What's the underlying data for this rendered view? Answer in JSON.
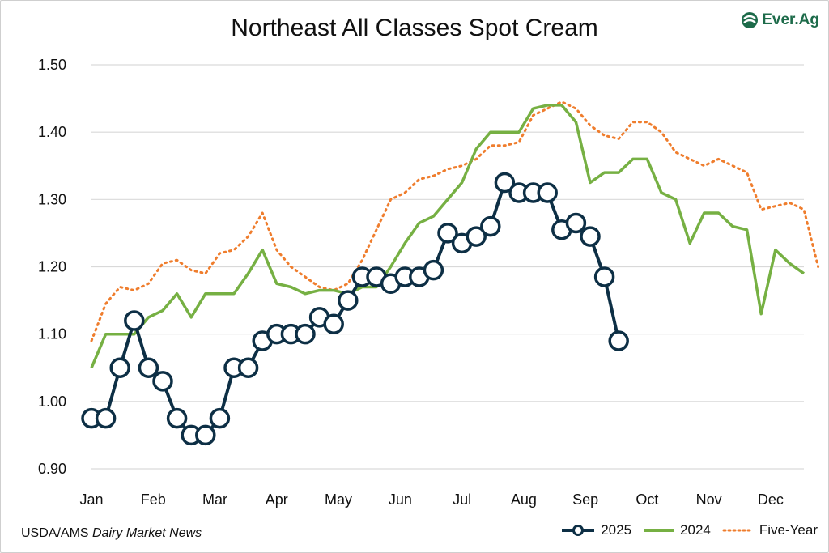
{
  "logo": {
    "name": "Ever.Ag",
    "icon": "ever-ag-logo-icon"
  },
  "source": {
    "prefix": "USDA/AMS",
    "publication": "Dairy Market News"
  },
  "colors": {
    "s2025": "#0d2f45",
    "s2024": "#76b043",
    "five": "#ef7d2d",
    "grid": "#d9d9d9"
  },
  "chart_data": {
    "type": "line",
    "title": "Northeast All Classes Spot Cream",
    "ylim": [
      0.9,
      1.5
    ],
    "yticks": [
      "0.90",
      "1.00",
      "1.10",
      "1.20",
      "1.30",
      "1.40",
      "1.50"
    ],
    "xlim": [
      0,
      50
    ],
    "months": [
      "Jan",
      "Feb",
      "Mar",
      "Apr",
      "May",
      "Jun",
      "Jul",
      "Aug",
      "Sep",
      "Oct",
      "Nov",
      "Dec"
    ],
    "grid": true,
    "legend_position": "bottom-right",
    "series": [
      {
        "name": "2025",
        "style": "line-markers",
        "x": [
          0,
          1,
          2,
          3,
          4,
          5,
          6,
          7,
          8,
          9,
          10,
          11,
          12,
          13,
          14,
          15,
          16,
          17,
          18,
          19,
          20,
          21,
          22,
          23,
          24,
          25,
          26,
          27,
          28,
          29,
          30,
          31,
          32,
          33,
          34,
          35,
          36,
          37
        ],
        "values": [
          0.975,
          0.975,
          1.05,
          1.12,
          1.05,
          1.03,
          0.975,
          0.95,
          0.95,
          0.975,
          1.05,
          1.05,
          1.09,
          1.1,
          1.1,
          1.1,
          1.125,
          1.115,
          1.15,
          1.185,
          1.185,
          1.175,
          1.185,
          1.185,
          1.195,
          1.25,
          1.235,
          1.245,
          1.26,
          1.325,
          1.31,
          1.31,
          1.31,
          1.255,
          1.265,
          1.245,
          1.185,
          1.09
        ]
      },
      {
        "name": "2024",
        "style": "line",
        "x": [
          0,
          1,
          2,
          3,
          4,
          5,
          6,
          7,
          8,
          9,
          10,
          11,
          12,
          13,
          14,
          15,
          16,
          17,
          18,
          19,
          20,
          21,
          22,
          23,
          24,
          25,
          26,
          27,
          28,
          29,
          30,
          31,
          32,
          33,
          34,
          35,
          36,
          37,
          38,
          39,
          40,
          41,
          42,
          43,
          44,
          45,
          46,
          47,
          48,
          49,
          50
        ],
        "values": [
          1.05,
          1.1,
          1.1,
          1.1,
          1.125,
          1.135,
          1.16,
          1.125,
          1.16,
          1.16,
          1.16,
          1.19,
          1.225,
          1.175,
          1.17,
          1.16,
          1.165,
          1.165,
          1.16,
          1.17,
          1.17,
          1.2,
          1.235,
          1.265,
          1.275,
          1.3,
          1.325,
          1.375,
          1.4,
          1.4,
          1.4,
          1.435,
          1.44,
          1.44,
          1.415,
          1.325,
          1.34,
          1.34,
          1.36,
          1.36,
          1.31,
          1.3,
          1.235,
          1.28,
          1.28,
          1.26,
          1.255,
          1.13,
          1.225,
          1.205,
          1.19
        ]
      },
      {
        "name": "Five-Year",
        "style": "dotted",
        "x": [
          0,
          1,
          2,
          3,
          4,
          5,
          6,
          7,
          8,
          9,
          10,
          11,
          12,
          13,
          14,
          15,
          16,
          17,
          18,
          19,
          20,
          21,
          22,
          23,
          24,
          25,
          26,
          27,
          28,
          29,
          30,
          31,
          32,
          33,
          34,
          35,
          36,
          37,
          38,
          39,
          40,
          41,
          42,
          43,
          44,
          45,
          46,
          47,
          48,
          49,
          50,
          51
        ],
        "values": [
          1.09,
          1.145,
          1.17,
          1.165,
          1.175,
          1.205,
          1.21,
          1.195,
          1.19,
          1.22,
          1.225,
          1.245,
          1.28,
          1.225,
          1.2,
          1.185,
          1.17,
          1.165,
          1.175,
          1.21,
          1.255,
          1.3,
          1.31,
          1.33,
          1.335,
          1.345,
          1.35,
          1.36,
          1.38,
          1.38,
          1.385,
          1.425,
          1.435,
          1.445,
          1.435,
          1.41,
          1.395,
          1.39,
          1.415,
          1.415,
          1.4,
          1.37,
          1.36,
          1.35,
          1.36,
          1.35,
          1.34,
          1.285,
          1.29,
          1.295,
          1.285,
          1.2
        ]
      }
    ]
  }
}
